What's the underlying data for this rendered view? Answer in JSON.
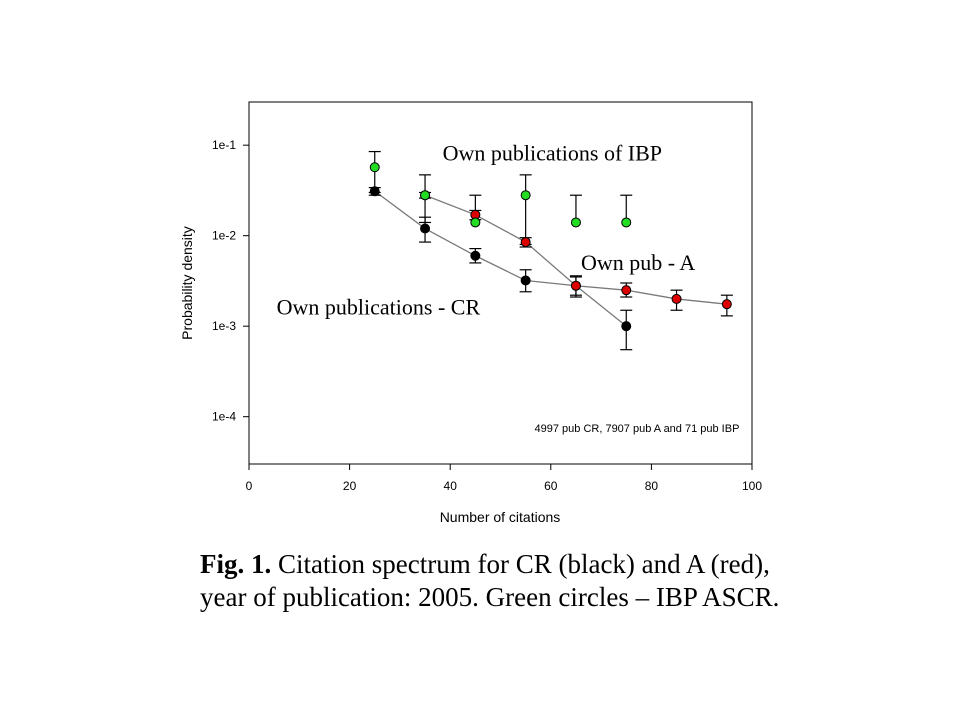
{
  "chart_data": {
    "type": "scatter",
    "xlabel": "Number of citations",
    "ylabel": "Probability density",
    "xlim": [
      0,
      100
    ],
    "ylim": [
      3e-05,
      0.3
    ],
    "yscale": "log",
    "xticks": [
      0,
      20,
      40,
      60,
      80,
      100
    ],
    "yticks": [
      {
        "value": 0.1,
        "label": "1e-1"
      },
      {
        "value": 0.01,
        "label": "1e-2"
      },
      {
        "value": 0.001,
        "label": "1e-3"
      },
      {
        "value": 0.0001,
        "label": "1e-4"
      }
    ],
    "grid": false,
    "series": [
      {
        "name": "Own publications - CR",
        "color": "#000000",
        "connected": true,
        "points": [
          {
            "x": 25,
            "y": 0.031,
            "lo": 0.028,
            "hi": 0.034
          },
          {
            "x": 35,
            "y": 0.012,
            "lo": 0.0085,
            "hi": 0.016
          },
          {
            "x": 45,
            "y": 0.006,
            "lo": 0.005,
            "hi": 0.0072
          },
          {
            "x": 55,
            "y": 0.0032,
            "lo": 0.0024,
            "hi": 0.0042
          },
          {
            "x": 65,
            "y": 0.0028,
            "lo": 0.0021,
            "hi": 0.0036
          },
          {
            "x": 75,
            "y": 0.001,
            "lo": 0.00055,
            "hi": 0.0015
          }
        ]
      },
      {
        "name": "Own pub - A",
        "color": "#dd0000",
        "connected": true,
        "points": [
          {
            "x": 35,
            "y": 0.028,
            "lo": 0.026,
            "hi": 0.03
          },
          {
            "x": 45,
            "y": 0.017,
            "lo": 0.015,
            "hi": 0.019
          },
          {
            "x": 55,
            "y": 0.0085,
            "lo": 0.0075,
            "hi": 0.0095
          },
          {
            "x": 65,
            "y": 0.0028,
            "lo": 0.0022,
            "hi": 0.0035
          },
          {
            "x": 75,
            "y": 0.0025,
            "lo": 0.0021,
            "hi": 0.003
          },
          {
            "x": 85,
            "y": 0.002,
            "lo": 0.0015,
            "hi": 0.0025
          },
          {
            "x": 95,
            "y": 0.00175,
            "lo": 0.0013,
            "hi": 0.0022
          }
        ]
      },
      {
        "name": "Own publications of IBP",
        "color": "#22dd22",
        "connected": false,
        "points": [
          {
            "x": 25,
            "y": 0.057,
            "lo": 0.03,
            "hi": 0.085
          },
          {
            "x": 35,
            "y": 0.028,
            "lo": 0.014,
            "hi": 0.047
          },
          {
            "x": 45,
            "y": 0.014,
            "lo": null,
            "hi": 0.028
          },
          {
            "x": 55,
            "y": 0.028,
            "lo": 0.008,
            "hi": 0.047
          },
          {
            "x": 65,
            "y": 0.014,
            "lo": null,
            "hi": 0.028
          },
          {
            "x": 75,
            "y": 0.014,
            "lo": null,
            "hi": 0.028
          }
        ]
      }
    ],
    "annotations": [
      {
        "text": "Own publications of IBP",
        "x": 38.5,
        "y": 0.068
      },
      {
        "text": "Own pub - A",
        "x": 66,
        "y": 0.0042
      },
      {
        "text": "Own publications - CR",
        "x": 5.5,
        "y": 0.00135
      },
      {
        "text": "4997 pub CR, 7907 pub A and 71 pub IBP",
        "x": 97.5,
        "y": 6.8e-05
      }
    ]
  },
  "caption": {
    "label": "Fig. 1.",
    "text": "Citation spectrum for CR (black) and A (red), year of publication: 2005. Green circles – IBP ASCR."
  }
}
